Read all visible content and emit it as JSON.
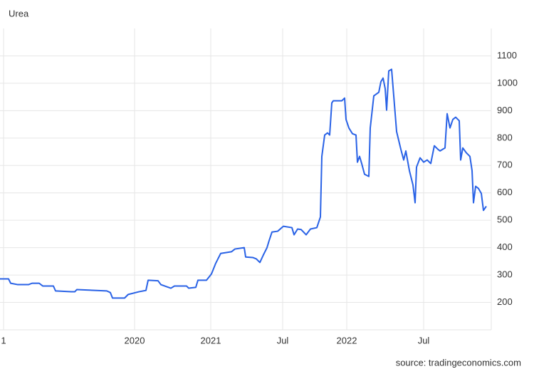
{
  "chart_data": {
    "type": "line",
    "title": "Urea",
    "source": "source: tradingeconomics.com",
    "x": [
      0,
      12,
      15,
      25,
      40,
      45,
      55,
      60,
      75,
      78,
      100,
      105,
      108,
      150,
      155,
      158,
      175,
      180,
      195,
      205,
      208,
      222,
      226,
      240,
      245,
      262,
      265,
      275,
      278,
      290,
      297,
      303,
      310,
      325,
      330,
      343,
      345,
      355,
      360,
      365,
      370,
      375,
      378,
      382,
      390,
      398,
      410,
      413,
      418,
      423,
      430,
      436,
      445,
      450,
      452,
      456,
      460,
      463,
      466,
      468,
      480,
      484,
      486,
      490,
      495,
      500,
      502,
      505,
      508,
      512,
      518,
      520,
      525,
      532,
      535,
      538,
      541,
      543,
      546,
      550,
      553,
      557,
      563,
      567,
      570,
      575,
      580,
      583,
      585,
      590,
      595,
      600,
      605,
      610,
      615,
      618,
      625,
      628,
      632,
      636,
      640,
      645,
      647,
      650,
      655,
      660,
      663,
      665,
      668,
      672,
      676,
      679,
      683
    ],
    "series": [
      {
        "name": "Urea",
        "color": "#2962e6",
        "values": [
          286,
          286,
          270,
          265,
          265,
          270,
          270,
          260,
          260,
          242,
          239,
          239,
          247,
          242,
          236,
          216,
          216,
          229,
          239,
          244,
          281,
          279,
          265,
          252,
          260,
          260,
          252,
          255,
          281,
          281,
          304,
          343,
          379,
          385,
          395,
          400,
          366,
          364,
          359,
          346,
          374,
          400,
          426,
          457,
          460,
          478,
          473,
          447,
          468,
          466,
          447,
          468,
          473,
          512,
          733,
          811,
          819,
          811,
          928,
          936,
          936,
          946,
          868,
          837,
          816,
          811,
          712,
          733,
          707,
          668,
          660,
          837,
          954,
          967,
          1006,
          1019,
          980,
          902,
          1045,
          1051,
          954,
          824,
          759,
          720,
          753,
          681,
          629,
          564,
          694,
          728,
          712,
          720,
          707,
          772,
          759,
          753,
          764,
          889,
          837,
          868,
          876,
          863,
          720,
          764,
          746,
          733,
          681,
          564,
          624,
          616,
          598,
          536,
          551
        ]
      }
    ],
    "xlim": [
      0,
      690
    ],
    "xticks": [
      {
        "value": 5,
        "label": "1"
      },
      {
        "value": 189,
        "label": "2020"
      },
      {
        "value": 296,
        "label": "2021"
      },
      {
        "value": 397,
        "label": "Jul"
      },
      {
        "value": 487,
        "label": "2022"
      },
      {
        "value": 595,
        "label": "Jul"
      }
    ],
    "ylim": [
      100,
      1200
    ],
    "yticks": [
      200,
      300,
      400,
      500,
      600,
      700,
      800,
      900,
      1000,
      1100
    ],
    "grid": true
  }
}
